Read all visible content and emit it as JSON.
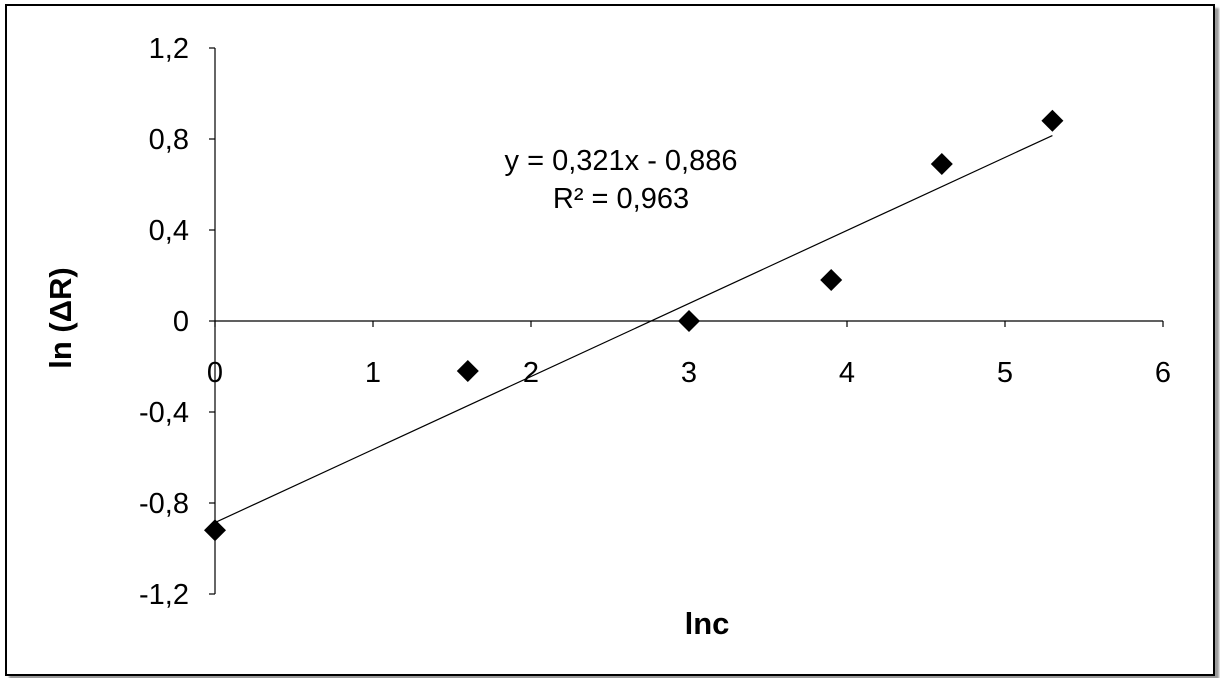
{
  "chart_data": {
    "type": "scatter",
    "title": "",
    "xlabel": "lnc",
    "ylabel": "ln (ΔR)",
    "xlim": [
      0,
      6
    ],
    "ylim": [
      -1.2,
      1.2
    ],
    "x_ticks": [
      {
        "value": 0,
        "label": "0"
      },
      {
        "value": 1,
        "label": "1"
      },
      {
        "value": 2,
        "label": "2"
      },
      {
        "value": 3,
        "label": "3"
      },
      {
        "value": 4,
        "label": "4"
      },
      {
        "value": 5,
        "label": "5"
      },
      {
        "value": 6,
        "label": "6"
      }
    ],
    "y_ticks": [
      {
        "value": 1.2,
        "label": "1,2"
      },
      {
        "value": 0.8,
        "label": "0,8"
      },
      {
        "value": 0.4,
        "label": "0,4"
      },
      {
        "value": 0,
        "label": "0"
      },
      {
        "value": -0.4,
        "label": "-0,4"
      },
      {
        "value": -0.8,
        "label": "-0,8"
      },
      {
        "value": -1.2,
        "label": "-1,2"
      }
    ],
    "grid": false,
    "legend": "none",
    "marker": "diamond",
    "marker_color": "#000000",
    "series": [
      {
        "points": [
          {
            "x": 0,
            "y": -0.92
          },
          {
            "x": 1.6,
            "y": -0.22
          },
          {
            "x": 3.0,
            "y": 0.0
          },
          {
            "x": 3.9,
            "y": 0.18
          },
          {
            "x": 4.6,
            "y": 0.69
          },
          {
            "x": 5.3,
            "y": 0.88
          }
        ]
      }
    ],
    "trendline": {
      "type": "linear",
      "slope": 0.321,
      "intercept": -0.886,
      "x_range": [
        0,
        5.3
      ],
      "equation_text": "y = 0,321x - 0,886",
      "r2_text": "R² = 0,963"
    }
  }
}
